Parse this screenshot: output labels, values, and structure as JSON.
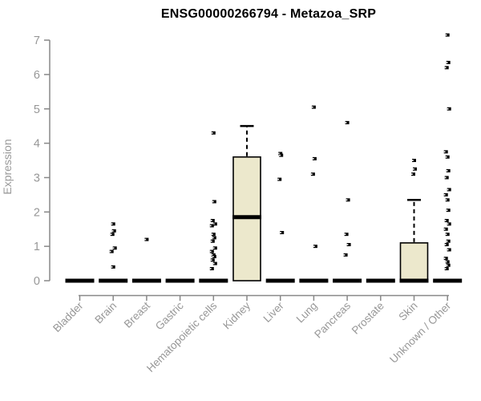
{
  "chart_data": {
    "type": "boxplot",
    "title": "ENSG00000266794 - Metazoa_SRP",
    "ylabel": "Expression",
    "ylim": [
      0,
      7
    ],
    "yticks": [
      0,
      1,
      2,
      3,
      4,
      5,
      6,
      7
    ],
    "grid": false,
    "legend": false,
    "categories": [
      "Bladder",
      "Brain",
      "Breast",
      "Gastric",
      "Hematopoietic cells",
      "Kidney",
      "Liver",
      "Lung",
      "Pancreas",
      "Prostate",
      "Skin",
      "Unknown / Other"
    ],
    "boxes": [
      {
        "label": "Bladder",
        "q1": 0,
        "median": 0,
        "q3": 0,
        "whisker_low": 0,
        "whisker_high": 0,
        "outliers": []
      },
      {
        "label": "Brain",
        "q1": 0,
        "median": 0,
        "q3": 0,
        "whisker_low": 0,
        "whisker_high": 0,
        "outliers": [
          1.65,
          1.45,
          1.35,
          0.95,
          0.85,
          0.4
        ]
      },
      {
        "label": "Breast",
        "q1": 0,
        "median": 0,
        "q3": 0,
        "whisker_low": 0,
        "whisker_high": 0,
        "outliers": [
          1.2
        ]
      },
      {
        "label": "Gastric",
        "q1": 0,
        "median": 0,
        "q3": 0,
        "whisker_low": 0,
        "whisker_high": 0,
        "outliers": []
      },
      {
        "label": "Hematopoietic cells",
        "q1": 0,
        "median": 0,
        "q3": 0,
        "whisker_low": 0,
        "whisker_high": 0,
        "outliers": [
          4.3,
          2.3,
          1.75,
          1.65,
          1.6,
          1.35,
          1.25,
          1.15,
          0.95,
          0.85,
          0.75,
          0.7,
          0.6,
          0.5,
          0.35
        ]
      },
      {
        "label": "Kidney",
        "q1": 0,
        "median": 1.85,
        "q3": 3.6,
        "whisker_low": 0,
        "whisker_high": 4.5,
        "outliers": []
      },
      {
        "label": "Liver",
        "q1": 0,
        "median": 0,
        "q3": 0,
        "whisker_low": 0,
        "whisker_high": 0,
        "outliers": [
          3.7,
          3.65,
          2.95,
          1.4
        ]
      },
      {
        "label": "Lung",
        "q1": 0,
        "median": 0,
        "q3": 0,
        "whisker_low": 0,
        "whisker_high": 0,
        "outliers": [
          5.05,
          3.55,
          3.1,
          1.0
        ]
      },
      {
        "label": "Pancreas",
        "q1": 0,
        "median": 0,
        "q3": 0,
        "whisker_low": 0,
        "whisker_high": 0,
        "outliers": [
          4.6,
          2.35,
          1.35,
          1.05,
          0.75
        ]
      },
      {
        "label": "Prostate",
        "q1": 0,
        "median": 0,
        "q3": 0,
        "whisker_low": 0,
        "whisker_high": 0,
        "outliers": []
      },
      {
        "label": "Skin",
        "q1": 0,
        "median": 0,
        "q3": 1.1,
        "whisker_low": 0,
        "whisker_high": 2.35,
        "outliers": [
          3.5,
          3.25,
          3.1
        ]
      },
      {
        "label": "Unknown / Other",
        "q1": 0,
        "median": 0,
        "q3": 0,
        "whisker_low": 0,
        "whisker_high": 0,
        "outliers": [
          7.15,
          6.35,
          6.2,
          5.0,
          3.75,
          3.6,
          3.2,
          3.0,
          2.65,
          2.5,
          2.35,
          2.05,
          1.75,
          1.65,
          1.5,
          1.35,
          1.15,
          1.05,
          0.9,
          0.65,
          0.55,
          0.45,
          0.35
        ]
      }
    ]
  },
  "colors": {
    "box_fill": "#ECE8CC",
    "box_border": "#000000",
    "median": "#000000",
    "whisker": "#000000",
    "outlier": "#000000",
    "axis": "#888888",
    "tick_label": "#979797",
    "title": "#000000",
    "background": "#FFFFFF"
  }
}
